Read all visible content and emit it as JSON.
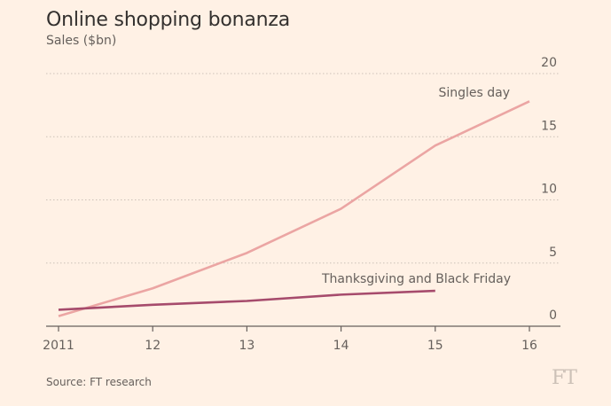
{
  "title": "Online shopping bonanza",
  "subtitle": "Sales ($bn)",
  "source": "Source: FT research",
  "logo": "FT",
  "colors": {
    "background": "#fff1e5",
    "singles_day": "#eba5a3",
    "thanksgiving": "#a64b6c",
    "grid": "#ccc1b7",
    "axis": "#66605c"
  },
  "chart_data": {
    "type": "line",
    "x": [
      2011,
      2012,
      2013,
      2014,
      2015,
      2016
    ],
    "x_tick_labels": [
      "2011",
      "12",
      "13",
      "14",
      "15",
      "16"
    ],
    "series": [
      {
        "name": "Singles day",
        "x": [
          2011,
          2012,
          2013,
          2014,
          2015,
          2016
        ],
        "values": [
          0.8,
          3.0,
          5.8,
          9.3,
          14.3,
          17.8
        ]
      },
      {
        "name": "Thanksgiving and Black Friday",
        "x": [
          2011,
          2012,
          2013,
          2014,
          2015
        ],
        "values": [
          1.3,
          1.7,
          2.0,
          2.5,
          2.8
        ]
      }
    ],
    "y_ticks": [
      0,
      5,
      10,
      15,
      20
    ],
    "ylim": [
      0,
      20
    ],
    "xlim": [
      2011,
      2016
    ],
    "grid": true,
    "y_axis_position": "right"
  }
}
